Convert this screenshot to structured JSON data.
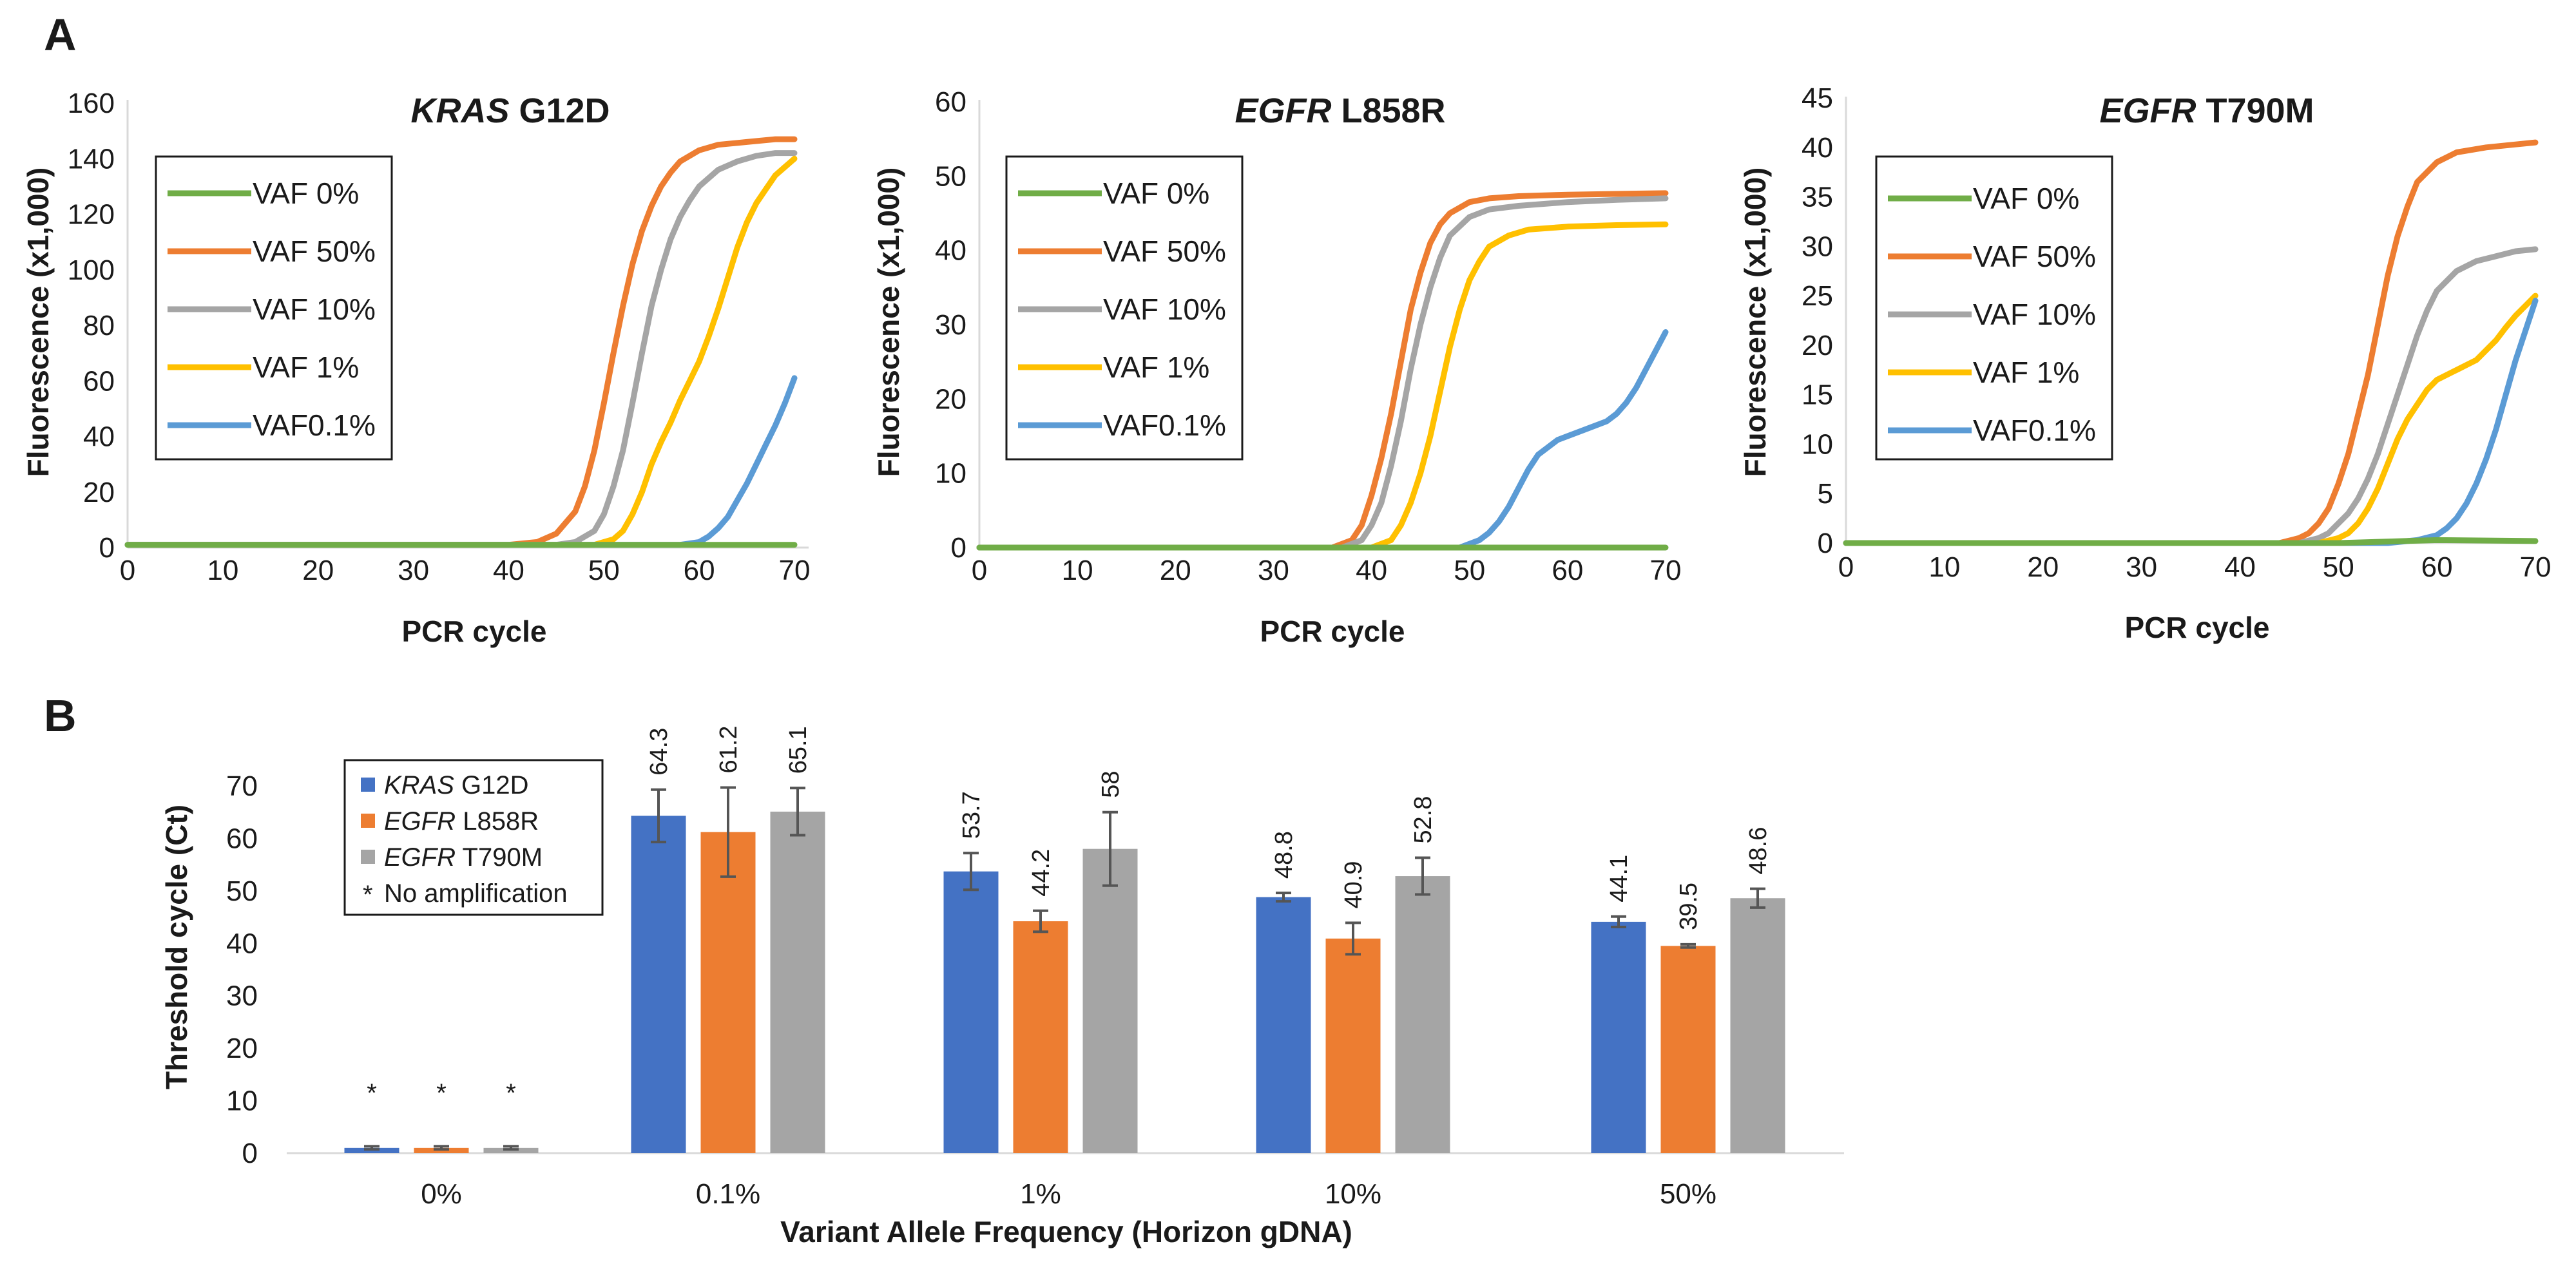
{
  "panel_labels": {
    "a": "A",
    "b": "B"
  },
  "colors": {
    "VAF 0%": "#70ad47",
    "VAF 50%": "#ed7d31",
    "VAF 10%": "#a5a5a5",
    "VAF 1%": "#ffc000",
    "VAF0.1%": "#5b9bd5",
    "bar_kras": "#4472c4",
    "bar_l858r": "#ed7d31",
    "bar_t790m": "#a5a5a5"
  },
  "chart_data": [
    {
      "type": "line",
      "title_italic": "KRAS",
      "title_rest": " G12D",
      "xlabel": "PCR cycle",
      "ylabel": "Fluorescence (x1,000)",
      "xlim": [
        0,
        70
      ],
      "ylim": [
        0,
        160
      ],
      "xticks": [
        0,
        10,
        20,
        30,
        40,
        50,
        60,
        70
      ],
      "yticks": [
        0,
        20,
        40,
        60,
        80,
        100,
        120,
        140,
        160
      ],
      "legend": [
        "VAF 0%",
        "VAF 50%",
        "VAF 10%",
        "VAF 1%",
        "VAF0.1%"
      ],
      "series": [
        {
          "name": "VAF 0%",
          "x": [
            0,
            10,
            20,
            30,
            40,
            50,
            60,
            70
          ],
          "y": [
            1,
            1,
            1,
            1,
            1,
            1,
            1,
            1
          ]
        },
        {
          "name": "VAF 50%",
          "x": [
            0,
            40,
            43,
            45,
            47,
            48,
            49,
            50,
            51,
            52,
            53,
            54,
            55,
            56,
            57,
            58,
            60,
            62,
            65,
            68,
            70
          ],
          "y": [
            1,
            1,
            2,
            5,
            13,
            22,
            35,
            52,
            70,
            87,
            102,
            114,
            123,
            130,
            135,
            139,
            143,
            145,
            146,
            147,
            147
          ]
        },
        {
          "name": "VAF 10%",
          "x": [
            0,
            45,
            47,
            49,
            50,
            51,
            52,
            53,
            54,
            55,
            56,
            57,
            58,
            59,
            60,
            62,
            64,
            66,
            68,
            70
          ],
          "y": [
            1,
            1,
            2,
            6,
            12,
            22,
            35,
            52,
            70,
            87,
            100,
            111,
            119,
            125,
            130,
            136,
            139,
            141,
            142,
            142
          ]
        },
        {
          "name": "VAF 1%",
          "x": [
            0,
            49,
            51,
            52,
            53,
            54,
            55,
            56,
            57,
            58,
            59,
            60,
            61,
            62,
            63,
            64,
            65,
            66,
            67,
            68,
            69,
            70
          ],
          "y": [
            1,
            1,
            3,
            6,
            12,
            20,
            30,
            38,
            45,
            53,
            60,
            67,
            76,
            86,
            97,
            108,
            117,
            124,
            129,
            134,
            137,
            140
          ]
        },
        {
          "name": "VAF0.1%",
          "x": [
            0,
            58,
            60,
            61,
            62,
            63,
            64,
            65,
            66,
            67,
            68,
            69,
            70
          ],
          "y": [
            1,
            1,
            2,
            4,
            7,
            11,
            17,
            23,
            30,
            37,
            44,
            52,
            61
          ]
        }
      ]
    },
    {
      "type": "line",
      "title_italic": "EGFR",
      "title_rest": " L858R",
      "xlabel": "PCR cycle",
      "ylabel": "Fluorescence (x1,000)",
      "xlim": [
        0,
        70
      ],
      "ylim": [
        0,
        60
      ],
      "xticks": [
        0,
        10,
        20,
        30,
        40,
        50,
        60,
        70
      ],
      "yticks": [
        0,
        10,
        20,
        30,
        40,
        50,
        60
      ],
      "legend": [
        "VAF 0%",
        "VAF 50%",
        "VAF 10%",
        "VAF 1%",
        "VAF0.1%"
      ],
      "series": [
        {
          "name": "VAF 0%",
          "x": [
            0,
            10,
            20,
            30,
            40,
            50,
            60,
            70
          ],
          "y": [
            0,
            0,
            0,
            0,
            0,
            0,
            0,
            0
          ]
        },
        {
          "name": "VAF 50%",
          "x": [
            0,
            36,
            38,
            39,
            40,
            41,
            42,
            43,
            44,
            45,
            46,
            47,
            48,
            50,
            52,
            55,
            60,
            65,
            70
          ],
          "y": [
            0,
            0,
            1,
            3,
            7,
            12,
            18,
            25,
            32,
            37,
            41,
            43.5,
            45,
            46.5,
            47,
            47.3,
            47.5,
            47.6,
            47.7
          ]
        },
        {
          "name": "VAF 10%",
          "x": [
            0,
            37,
            39,
            40,
            41,
            42,
            43,
            44,
            45,
            46,
            47,
            48,
            50,
            52,
            55,
            60,
            65,
            70
          ],
          "y": [
            0,
            0,
            1,
            3,
            6,
            11,
            17,
            24,
            30,
            35,
            39,
            42,
            44.5,
            45.5,
            46,
            46.5,
            46.8,
            47
          ]
        },
        {
          "name": "VAF 1%",
          "x": [
            0,
            40,
            42,
            43,
            44,
            45,
            46,
            47,
            48,
            49,
            50,
            51,
            52,
            54,
            56,
            60,
            65,
            70
          ],
          "y": [
            0,
            0,
            1,
            3,
            6,
            10,
            15,
            21,
            27,
            32,
            36,
            38.5,
            40.5,
            42,
            42.8,
            43.2,
            43.4,
            43.5
          ]
        },
        {
          "name": "VAF0.1%",
          "x": [
            0,
            49,
            51,
            52,
            53,
            54,
            55,
            56,
            57,
            58,
            59,
            60,
            62,
            64,
            65,
            66,
            67,
            68,
            69,
            70
          ],
          "y": [
            0,
            0,
            1,
            2,
            3.5,
            5.5,
            8,
            10.5,
            12.5,
            13.5,
            14.5,
            15,
            16,
            17,
            18,
            19.5,
            21.5,
            24,
            26.5,
            29
          ]
        }
      ]
    },
    {
      "type": "line",
      "title_italic": "EGFR",
      "title_rest": " T790M",
      "xlabel": "PCR cycle",
      "ylabel": "Fluorescence (x1,000)",
      "xlim": [
        0,
        70
      ],
      "ylim": [
        0,
        45
      ],
      "xticks": [
        0,
        10,
        20,
        30,
        40,
        50,
        60,
        70
      ],
      "yticks": [
        0,
        5,
        10,
        15,
        20,
        25,
        30,
        35,
        40,
        45
      ],
      "legend": [
        "VAF 0%",
        "VAF 50%",
        "VAF 10%",
        "VAF 1%",
        "VAF0.1%"
      ],
      "series": [
        {
          "name": "VAF 0%",
          "x": [
            0,
            10,
            20,
            30,
            40,
            50,
            60,
            70
          ],
          "y": [
            0,
            0,
            0,
            0,
            0,
            0,
            0.3,
            0.2
          ]
        },
        {
          "name": "VAF 50%",
          "x": [
            0,
            44,
            46,
            47,
            48,
            49,
            50,
            51,
            52,
            53,
            54,
            55,
            56,
            57,
            58,
            60,
            62,
            65,
            68,
            70
          ],
          "y": [
            0,
            0,
            0.5,
            1,
            2,
            3.5,
            6,
            9,
            13,
            17,
            22,
            27,
            31,
            34,
            36.5,
            38.5,
            39.5,
            40,
            40.3,
            40.5
          ]
        },
        {
          "name": "VAF 10%",
          "x": [
            0,
            46,
            48,
            49,
            50,
            51,
            52,
            53,
            54,
            55,
            56,
            57,
            58,
            59,
            60,
            62,
            64,
            66,
            68,
            70
          ],
          "y": [
            0,
            0,
            0.5,
            1,
            2,
            3,
            4.5,
            6.5,
            9,
            12,
            15,
            18,
            21,
            23.5,
            25.5,
            27.5,
            28.5,
            29,
            29.5,
            29.7
          ]
        },
        {
          "name": "VAF 1%",
          "x": [
            0,
            48,
            50,
            51,
            52,
            53,
            54,
            55,
            56,
            57,
            58,
            59,
            60,
            62,
            64,
            65,
            66,
            67,
            68,
            69,
            70
          ],
          "y": [
            0,
            0,
            0.5,
            1,
            2,
            3.5,
            5.5,
            8,
            10.5,
            12.5,
            14,
            15.5,
            16.5,
            17.5,
            18.5,
            19.5,
            20.5,
            21.8,
            23,
            24,
            25
          ]
        },
        {
          "name": "VAF0.1%",
          "x": [
            0,
            55,
            58,
            60,
            61,
            62,
            63,
            64,
            65,
            66,
            67,
            68,
            69,
            70
          ],
          "y": [
            0,
            0,
            0.3,
            0.8,
            1.5,
            2.5,
            4,
            6,
            8.5,
            11.5,
            15,
            18.5,
            21.5,
            24.5
          ]
        }
      ]
    },
    {
      "type": "bar",
      "xlabel": "Variant Allele Frequency (Horizon gDNA)",
      "ylabel": "Threshold cycle (Ct)",
      "ylim": [
        0,
        70
      ],
      "yticks": [
        0,
        10,
        20,
        30,
        40,
        50,
        60,
        70
      ],
      "categories": [
        "0%",
        "0.1%",
        "1%",
        "10%",
        "50%"
      ],
      "series": [
        {
          "name_italic": "KRAS",
          "name_rest": " G12D",
          "values": [
            1,
            64.3,
            53.7,
            48.8,
            44.1
          ],
          "errors": [
            0.3,
            5,
            3.5,
            0.8,
            1
          ],
          "labels": [
            "*",
            "64.3",
            "53.7",
            "48.8",
            "44.1"
          ]
        },
        {
          "name_italic": "EGFR",
          "name_rest": " L858R",
          "values": [
            1,
            61.2,
            44.2,
            40.9,
            39.5
          ],
          "errors": [
            0.3,
            8.5,
            2,
            3,
            0.3
          ],
          "labels": [
            "*",
            "61.2",
            "44.2",
            "40.9",
            "39.5"
          ]
        },
        {
          "name_italic": "EGFR",
          "name_rest": " T790M",
          "values": [
            1,
            65.1,
            58,
            52.8,
            48.6
          ],
          "errors": [
            0.3,
            4.5,
            7,
            3.5,
            1.8
          ],
          "labels": [
            "*",
            "65.1",
            "58",
            "52.8",
            "48.6"
          ]
        }
      ],
      "legend_note_symbol": "*",
      "legend_note": "No amplification"
    }
  ]
}
